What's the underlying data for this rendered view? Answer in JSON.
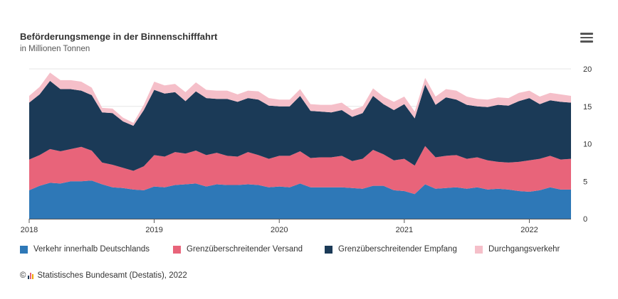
{
  "header": {
    "title": "Beförderungsmenge in der Binnenschifffahrt",
    "subtitle": "in Millionen Tonnen",
    "menu_icon": "hamburger-menu-icon"
  },
  "footer": {
    "copyright_symbol": "©",
    "source": "Statistisches Bundesamt (Destatis), 2022"
  },
  "colors": {
    "inland": "#2e78b7",
    "export": "#e8647a",
    "import": "#1b3a57",
    "transit": "#f5bfc9",
    "grid": "#e6e6e6",
    "axis": "#555555"
  },
  "chart_data": {
    "type": "area",
    "stacked": true,
    "title": "Beförderungsmenge in der Binnenschifffahrt",
    "subtitle": "in Millionen Tonnen",
    "xlabel": "",
    "ylabel": "",
    "ylim": [
      0,
      20
    ],
    "yticks": [
      "0",
      "5",
      "10",
      "15",
      "20"
    ],
    "y_axis_side": "right",
    "xticks": [
      "2018",
      "2019",
      "2020",
      "2021",
      "2022"
    ],
    "x_start": "2018-01",
    "x_end": "2022-05",
    "legend_position": "bottom",
    "x": [
      "2018-01",
      "2018-02",
      "2018-03",
      "2018-04",
      "2018-05",
      "2018-06",
      "2018-07",
      "2018-08",
      "2018-09",
      "2018-10",
      "2018-11",
      "2018-12",
      "2019-01",
      "2019-02",
      "2019-03",
      "2019-04",
      "2019-05",
      "2019-06",
      "2019-07",
      "2019-08",
      "2019-09",
      "2019-10",
      "2019-11",
      "2019-12",
      "2020-01",
      "2020-02",
      "2020-03",
      "2020-04",
      "2020-05",
      "2020-06",
      "2020-07",
      "2020-08",
      "2020-09",
      "2020-10",
      "2020-11",
      "2020-12",
      "2021-01",
      "2021-02",
      "2021-03",
      "2021-04",
      "2021-05",
      "2021-06",
      "2021-07",
      "2021-08",
      "2021-09",
      "2021-10",
      "2021-11",
      "2021-12",
      "2022-01",
      "2022-02",
      "2022-03",
      "2022-04",
      "2022-05"
    ],
    "series": [
      {
        "name": "Verkehr innerhalb Deutschlands",
        "color": "#2e78b7",
        "values": [
          3.8,
          4.4,
          4.8,
          4.7,
          5.0,
          5.0,
          5.1,
          4.6,
          4.2,
          4.1,
          3.9,
          3.8,
          4.3,
          4.2,
          4.5,
          4.6,
          4.7,
          4.3,
          4.6,
          4.5,
          4.5,
          4.6,
          4.5,
          4.2,
          4.3,
          4.2,
          4.7,
          4.2,
          4.2,
          4.2,
          4.2,
          4.1,
          4.0,
          4.4,
          4.4,
          3.8,
          3.7,
          3.3,
          4.6,
          4.0,
          4.1,
          4.2,
          4.0,
          4.2,
          3.9,
          4.0,
          3.9,
          3.7,
          3.6,
          3.8,
          4.2,
          3.9,
          3.9
        ]
      },
      {
        "name": "Grenzüberschreitender Versand",
        "color": "#e8647a",
        "values": [
          4.1,
          4.1,
          4.5,
          4.3,
          4.3,
          4.6,
          4.0,
          2.9,
          3.0,
          2.7,
          2.5,
          3.2,
          4.2,
          4.1,
          4.4,
          4.1,
          4.4,
          4.2,
          4.2,
          3.9,
          3.8,
          4.3,
          4.0,
          3.8,
          4.1,
          4.2,
          4.3,
          3.9,
          4.0,
          4.0,
          4.2,
          3.6,
          4.0,
          4.8,
          4.2,
          4.0,
          4.3,
          3.8,
          5.1,
          4.2,
          4.3,
          4.3,
          4.0,
          4.0,
          3.9,
          3.6,
          3.6,
          3.9,
          4.2,
          4.2,
          4.2,
          4.0,
          4.1
        ]
      },
      {
        "name": "Grenzüberschreitender Empfang",
        "color": "#1b3a57",
        "values": [
          7.6,
          8.1,
          9.1,
          8.3,
          8.0,
          7.5,
          7.4,
          6.7,
          6.9,
          6.2,
          6.0,
          7.5,
          8.7,
          8.4,
          8.0,
          7.0,
          7.9,
          7.6,
          7.2,
          7.6,
          7.3,
          7.2,
          7.4,
          7.1,
          6.6,
          6.6,
          7.4,
          6.3,
          6.1,
          6.0,
          6.1,
          5.9,
          6.1,
          7.2,
          6.7,
          6.7,
          7.3,
          6.3,
          8.2,
          7.0,
          7.8,
          7.4,
          7.2,
          6.8,
          7.1,
          7.6,
          7.6,
          8.1,
          8.3,
          7.3,
          7.4,
          7.7,
          7.5
        ]
      },
      {
        "name": "Durchgangsverkehr",
        "color": "#f5bfc9",
        "values": [
          0.9,
          1.0,
          1.1,
          1.2,
          1.2,
          1.2,
          1.0,
          0.6,
          0.6,
          0.5,
          0.4,
          0.7,
          1.1,
          1.1,
          1.1,
          1.2,
          1.2,
          1.1,
          1.1,
          1.1,
          1.0,
          1.0,
          1.1,
          1.0,
          0.9,
          0.9,
          0.9,
          0.9,
          0.9,
          1.0,
          1.0,
          0.9,
          0.9,
          1.0,
          1.0,
          1.1,
          1.0,
          0.9,
          0.9,
          1.1,
          1.1,
          1.2,
          1.1,
          1.0,
          1.0,
          1.0,
          1.0,
          1.1,
          1.0,
          1.0,
          1.0,
          1.0,
          0.9
        ]
      }
    ]
  }
}
